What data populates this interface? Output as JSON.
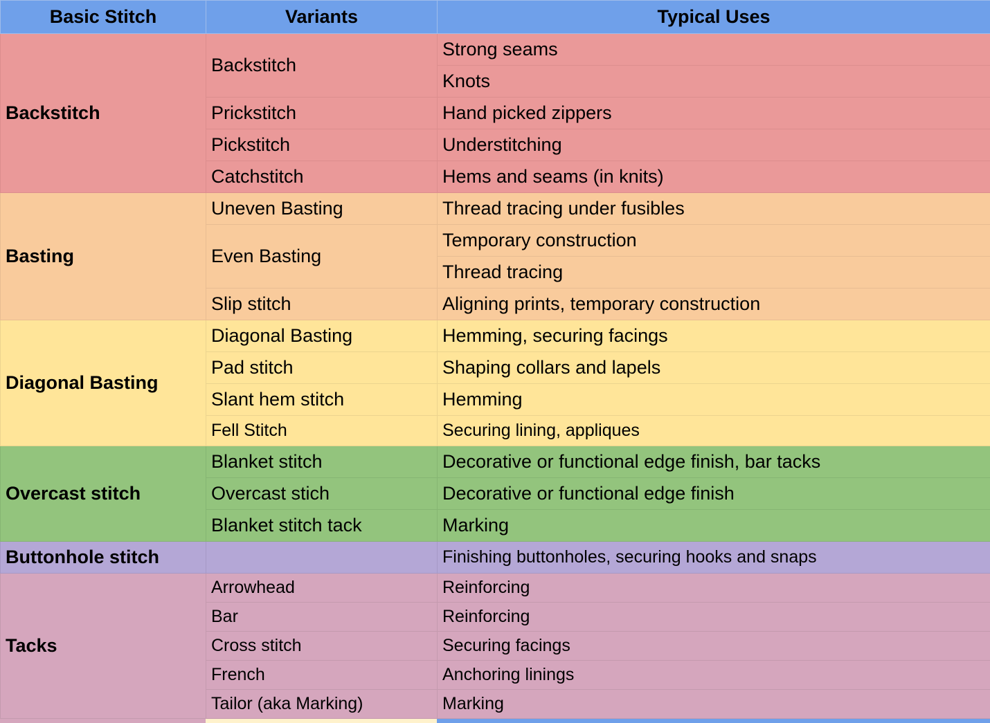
{
  "headers": {
    "basic_stitch": "Basic Stitch",
    "variants": "Variants",
    "typical_uses": "Typical Uses"
  },
  "colors": {
    "header": "#6fa0ea",
    "backstitch": "#ea9999",
    "basting": "#f9cb9c",
    "diagonal_basting": "#ffe599",
    "overcast": "#93c47d",
    "buttonhole": "#b4a7d6",
    "tacks": "#d5a6bd"
  },
  "groups": {
    "backstitch": {
      "name": "Backstitch",
      "variants": [
        "Backstitch",
        "Prickstitch",
        "Pickstitch",
        "Catchstitch"
      ],
      "uses": [
        "Strong seams",
        "Knots",
        "Hand picked zippers",
        "Understitching",
        "Hems and seams (in knits)"
      ]
    },
    "basting": {
      "name": "Basting",
      "variants": [
        "Uneven Basting",
        "Even Basting",
        "Slip stitch"
      ],
      "uses": [
        "Thread tracing under fusibles",
        "Temporary construction",
        "Thread tracing",
        "Aligning prints, temporary construction"
      ]
    },
    "diagonal_basting": {
      "name": "Diagonal Basting",
      "variants": [
        "Diagonal Basting",
        "Pad stitch",
        "Slant hem stitch",
        "Fell Stitch"
      ],
      "uses": [
        "Hemming, securing facings",
        "Shaping collars and lapels",
        "Hemming",
        "Securing lining, appliques"
      ]
    },
    "overcast": {
      "name": "Overcast stitch",
      "variants": [
        "Blanket stitch",
        "Overcast stich",
        "Blanket stitch tack"
      ],
      "uses": [
        "Decorative or functional edge finish, bar tacks",
        "Decorative or functional edge finish",
        "Marking"
      ]
    },
    "buttonhole": {
      "name": "Buttonhole stitch",
      "variants": [
        ""
      ],
      "uses": [
        "Finishing buttonholes, securing hooks and snaps"
      ]
    },
    "tacks": {
      "name": "Tacks",
      "variants": [
        "Arrowhead",
        "Bar",
        "Cross stitch",
        "French",
        "Tailor (aka Marking)"
      ],
      "uses": [
        "Reinforcing",
        "Reinforcing",
        "Securing facings",
        "Anchoring linings",
        "Marking"
      ]
    }
  }
}
